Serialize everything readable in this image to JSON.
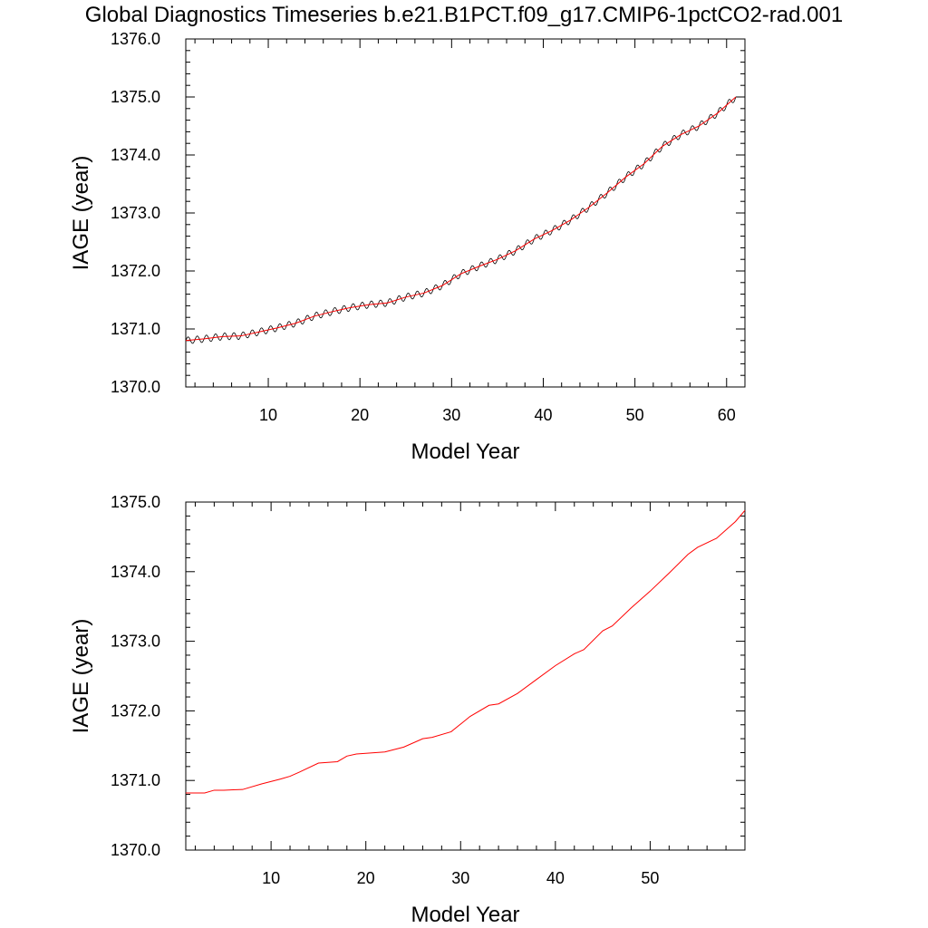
{
  "title": "Global Diagnostics Timeseries b.e21.B1PCT.f09_g17.CMIP6-1pctCO2-rad.001",
  "colors": {
    "raw": "#000000",
    "smooth": "#ff0000",
    "axis": "#000000"
  },
  "chart_data": [
    {
      "type": "line",
      "xlabel": "Model Year",
      "ylabel": "IAGE (year)",
      "xlim": [
        1,
        62
      ],
      "ylim": [
        1370.0,
        1376.0
      ],
      "xticks": [
        "10",
        "20",
        "30",
        "40",
        "50",
        "60"
      ],
      "yticks": [
        "1370.0",
        "1371.0",
        "1372.0",
        "1373.0",
        "1374.0",
        "1375.0",
        "1376.0"
      ],
      "grid": false,
      "series": [
        {
          "color": "#000000",
          "seasonal_amplitude": 0.06,
          "x": [
            1,
            3,
            5,
            7,
            9,
            11,
            13,
            15,
            17,
            19,
            21,
            23,
            25,
            27,
            29,
            31,
            33,
            35,
            37,
            39,
            41,
            43,
            45,
            47,
            49,
            51,
            53,
            55,
            57,
            59,
            61
          ],
          "y": [
            1370.8,
            1370.83,
            1370.87,
            1370.88,
            1370.95,
            1371.02,
            1371.1,
            1371.22,
            1371.3,
            1371.37,
            1371.42,
            1371.45,
            1371.55,
            1371.62,
            1371.75,
            1371.95,
            1372.08,
            1372.2,
            1372.35,
            1372.55,
            1372.7,
            1372.88,
            1373.1,
            1373.35,
            1373.62,
            1373.85,
            1374.15,
            1374.35,
            1374.5,
            1374.72,
            1375.0
          ]
        },
        {
          "color": "#ff0000",
          "x": [
            1,
            3,
            5,
            7,
            9,
            11,
            13,
            15,
            17,
            19,
            21,
            23,
            25,
            27,
            29,
            31,
            33,
            35,
            37,
            39,
            41,
            43,
            45,
            47,
            49,
            51,
            53,
            55,
            57,
            59,
            61
          ],
          "y": [
            1370.8,
            1370.83,
            1370.87,
            1370.88,
            1370.95,
            1371.02,
            1371.1,
            1371.22,
            1371.3,
            1371.37,
            1371.42,
            1371.45,
            1371.55,
            1371.62,
            1371.75,
            1371.95,
            1372.08,
            1372.2,
            1372.35,
            1372.55,
            1372.7,
            1372.88,
            1373.1,
            1373.35,
            1373.62,
            1373.85,
            1374.15,
            1374.35,
            1374.5,
            1374.72,
            1375.0
          ]
        }
      ]
    },
    {
      "type": "line",
      "xlabel": "Model Year",
      "ylabel": "IAGE (year)",
      "xlim": [
        1,
        60
      ],
      "ylim": [
        1370.0,
        1375.0
      ],
      "xticks": [
        "10",
        "20",
        "30",
        "40",
        "50"
      ],
      "yticks": [
        "1370.0",
        "1371.0",
        "1372.0",
        "1373.0",
        "1374.0",
        "1375.0"
      ],
      "grid": false,
      "series": [
        {
          "color": "#ff0000",
          "x": [
            1,
            3,
            4,
            5,
            7,
            9,
            11,
            12,
            13,
            15,
            17,
            18,
            19,
            21,
            22,
            24,
            26,
            27,
            29,
            31,
            33,
            34,
            36,
            38,
            40,
            42,
            43,
            45,
            46,
            48,
            50,
            52,
            54,
            55,
            57,
            59,
            60
          ],
          "y": [
            1370.82,
            1370.82,
            1370.86,
            1370.86,
            1370.87,
            1370.95,
            1371.02,
            1371.06,
            1371.12,
            1371.25,
            1371.27,
            1371.35,
            1371.38,
            1371.4,
            1371.41,
            1371.48,
            1371.6,
            1371.62,
            1371.7,
            1371.92,
            1372.08,
            1372.1,
            1372.25,
            1372.45,
            1372.65,
            1372.82,
            1372.88,
            1373.15,
            1373.22,
            1373.48,
            1373.72,
            1373.98,
            1374.25,
            1374.35,
            1374.48,
            1374.72,
            1374.88
          ]
        }
      ]
    }
  ]
}
